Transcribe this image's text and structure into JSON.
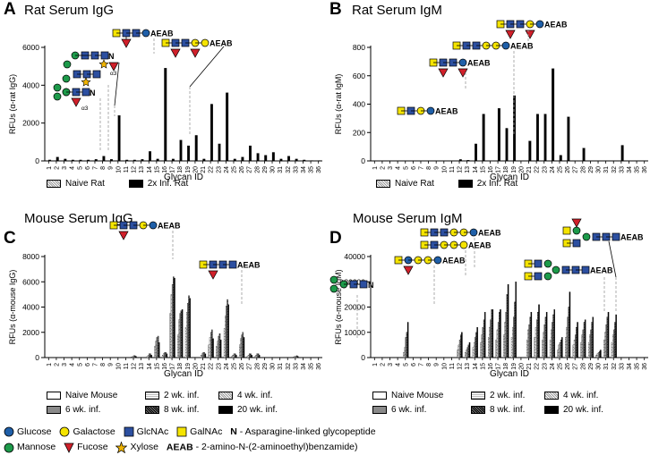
{
  "glycan_ids": [
    "1",
    "2",
    "3",
    "4",
    "5",
    "6",
    "7",
    "8",
    "9",
    "10",
    "11",
    "12",
    "13",
    "14",
    "15",
    "16",
    "17",
    "18",
    "19",
    "20",
    "21",
    "22",
    "23",
    "24",
    "25",
    "26",
    "27",
    "28",
    "29",
    "30",
    "31",
    "32",
    "33",
    "34",
    "35",
    "36"
  ],
  "xlabel": "Glycan ID",
  "panels": {
    "A": {
      "letter": "A",
      "title": "Rat Serum IgG",
      "ylabel": "RFUs (α-rat IgG)"
    },
    "B": {
      "letter": "B",
      "title": "Rat Serum IgM",
      "ylabel": "RFUs (α-rat IgM)"
    },
    "C": {
      "letter": "C",
      "title": "Mouse Serum IgG",
      "ylabel": "RFUs (α-mouse IgG)"
    },
    "D": {
      "letter": "D",
      "title": "Mouse Serum IgM",
      "ylabel": "RFUs (α-mouse IgM)"
    }
  },
  "rat_legend": [
    "Naive Rat",
    "2x Inf. Rat"
  ],
  "mouse_legend": [
    "Naive Mouse",
    "2 wk. inf.",
    "4 wk. inf.",
    "6 wk. inf.",
    "8 wk. inf.",
    "20 wk. inf."
  ],
  "annotations": {
    "aeab": "AEAB",
    "n": "N",
    "a3": "α3"
  },
  "key": {
    "glucose": "Glucose",
    "galactose": "Galactose",
    "glcnac": "GlcNAc",
    "galnac": "GalNAc",
    "n_label": "N",
    "n_desc": "- Asparagine-linked glycopeptide",
    "mannose": "Mannose",
    "fucose": "Fucose",
    "xylose": "Xylose",
    "aeab_label": "AEAB",
    "aeab_desc": "- 2-amino-N-(2-aminoethyl)benzamide)"
  },
  "colors": {
    "glucose": "#1f5fa8",
    "galactose": "#f5e400",
    "glcnac": "#2c4fa0",
    "galnac": "#f5e400",
    "mannose": "#1d9a4a",
    "fucose": "#d0202a",
    "xylose": "#f0b400"
  },
  "chart_data": [
    {
      "type": "bar",
      "title": "Rat Serum IgG",
      "xlabel": "Glycan ID",
      "ylabel": "RFUs (α-rat IgG)",
      "ylim": [
        0,
        6000
      ],
      "yticks": [
        0,
        2000,
        4000,
        6000
      ],
      "categories": [
        "1",
        "2",
        "3",
        "4",
        "5",
        "6",
        "7",
        "8",
        "9",
        "10",
        "11",
        "12",
        "13",
        "14",
        "15",
        "16",
        "17",
        "18",
        "19",
        "20",
        "21",
        "22",
        "23",
        "24",
        "25",
        "26",
        "27",
        "28",
        "29",
        "30",
        "31",
        "32",
        "33",
        "34",
        "35",
        "36"
      ],
      "series": [
        {
          "name": "Naive Rat",
          "values": [
            0,
            0,
            0,
            0,
            0,
            0,
            0,
            0,
            0,
            0,
            0,
            0,
            0,
            0,
            0,
            0,
            0,
            0,
            0,
            0,
            0,
            0,
            0,
            0,
            0,
            0,
            0,
            0,
            0,
            0,
            0,
            0,
            0,
            0,
            0,
            0
          ]
        },
        {
          "name": "2x Inf. Rat",
          "values": [
            50,
            200,
            100,
            50,
            50,
            50,
            80,
            250,
            80,
            2400,
            50,
            50,
            80,
            500,
            100,
            4900,
            100,
            1100,
            800,
            1350,
            100,
            3000,
            900,
            3600,
            100,
            200,
            800,
            400,
            300,
            450,
            100,
            250,
            100,
            50,
            20,
            20
          ]
        }
      ]
    },
    {
      "type": "bar",
      "title": "Rat Serum IgM",
      "xlabel": "Glycan ID",
      "ylabel": "RFUs (α-rat IgM)",
      "ylim": [
        0,
        800
      ],
      "yticks": [
        0,
        200,
        400,
        600,
        800
      ],
      "categories": [
        "1",
        "2",
        "3",
        "4",
        "5",
        "6",
        "7",
        "8",
        "9",
        "10",
        "11",
        "12",
        "13",
        "14",
        "15",
        "16",
        "17",
        "18",
        "19",
        "20",
        "21",
        "22",
        "23",
        "24",
        "25",
        "26",
        "27",
        "28",
        "29",
        "30",
        "31",
        "32",
        "33",
        "34",
        "35",
        "36"
      ],
      "series": [
        {
          "name": "Naive Rat",
          "values": [
            0,
            0,
            0,
            0,
            0,
            0,
            0,
            0,
            0,
            0,
            0,
            0,
            0,
            0,
            0,
            0,
            0,
            0,
            0,
            0,
            0,
            0,
            0,
            0,
            0,
            0,
            0,
            0,
            0,
            0,
            0,
            0,
            0,
            0,
            0,
            0
          ]
        },
        {
          "name": "2x Inf. Rat",
          "values": [
            0,
            0,
            0,
            0,
            0,
            0,
            0,
            0,
            0,
            0,
            0,
            10,
            5,
            120,
            330,
            0,
            370,
            230,
            460,
            0,
            140,
            330,
            330,
            650,
            40,
            310,
            0,
            90,
            0,
            0,
            0,
            0,
            110,
            0,
            0,
            0
          ]
        }
      ]
    },
    {
      "type": "bar",
      "title": "Mouse Serum IgG",
      "xlabel": "Glycan ID",
      "ylabel": "RFUs (α-mouse IgG)",
      "ylim": [
        0,
        8000
      ],
      "yticks": [
        0,
        2000,
        4000,
        6000,
        8000
      ],
      "categories": [
        "1",
        "2",
        "3",
        "4",
        "5",
        "6",
        "7",
        "8",
        "9",
        "10",
        "11",
        "12",
        "13",
        "14",
        "15",
        "16",
        "17",
        "18",
        "19",
        "20",
        "21",
        "22",
        "23",
        "24",
        "25",
        "26",
        "27",
        "28",
        "29",
        "30",
        "31",
        "32",
        "33",
        "34",
        "35",
        "36"
      ],
      "series": [
        {
          "name": "Naive Mouse",
          "values": [
            0,
            0,
            0,
            0,
            0,
            0,
            0,
            0,
            0,
            0,
            0,
            0,
            0,
            0,
            0,
            0,
            0,
            0,
            0,
            0,
            0,
            0,
            0,
            0,
            0,
            0,
            0,
            0,
            0,
            0,
            0,
            0,
            0,
            0,
            0,
            0
          ]
        },
        {
          "name": "2 wk. inf.",
          "values": [
            0,
            0,
            0,
            0,
            0,
            0,
            0,
            0,
            0,
            0,
            0,
            50,
            0,
            100,
            900,
            200,
            3500,
            1800,
            2400,
            0,
            200,
            1000,
            900,
            2300,
            100,
            1000,
            100,
            100,
            0,
            0,
            0,
            0,
            50,
            0,
            0,
            0
          ]
        },
        {
          "name": "4 wk. inf.",
          "values": [
            0,
            0,
            0,
            0,
            0,
            0,
            0,
            0,
            0,
            0,
            0,
            100,
            0,
            200,
            1300,
            300,
            5000,
            3000,
            3600,
            0,
            300,
            1600,
            1300,
            3300,
            200,
            1500,
            200,
            200,
            0,
            0,
            0,
            0,
            100,
            0,
            0,
            0
          ]
        },
        {
          "name": "6 wk. inf.",
          "values": [
            0,
            0,
            0,
            0,
            0,
            0,
            0,
            0,
            0,
            0,
            0,
            150,
            0,
            300,
            1600,
            400,
            5800,
            3500,
            4300,
            0,
            400,
            2000,
            1700,
            4100,
            300,
            1800,
            300,
            300,
            0,
            0,
            0,
            0,
            100,
            0,
            0,
            0
          ]
        },
        {
          "name": "8 wk. inf.",
          "values": [
            0,
            0,
            0,
            0,
            0,
            0,
            0,
            0,
            0,
            0,
            0,
            150,
            0,
            300,
            1700,
            400,
            6400,
            3700,
            4900,
            0,
            400,
            2200,
            1900,
            4600,
            300,
            2000,
            300,
            300,
            0,
            0,
            0,
            0,
            150,
            0,
            0,
            0
          ]
        },
        {
          "name": "20 wk. inf.",
          "values": [
            0,
            0,
            0,
            0,
            0,
            0,
            0,
            0,
            0,
            0,
            0,
            100,
            0,
            200,
            1200,
            300,
            6300,
            3800,
            4700,
            0,
            300,
            1500,
            1400,
            4200,
            200,
            1600,
            200,
            200,
            0,
            0,
            0,
            0,
            100,
            0,
            0,
            0
          ]
        }
      ]
    },
    {
      "type": "bar",
      "title": "Mouse Serum IgM",
      "xlabel": "Glycan ID",
      "ylabel": "RFUs (α-mouse IgM)",
      "ylim": [
        0,
        40000
      ],
      "yticks": [
        0,
        10000,
        20000,
        30000,
        40000
      ],
      "categories": [
        "1",
        "2",
        "3",
        "4",
        "5",
        "6",
        "7",
        "8",
        "9",
        "10",
        "11",
        "12",
        "13",
        "14",
        "15",
        "16",
        "17",
        "18",
        "19",
        "20",
        "21",
        "22",
        "23",
        "24",
        "25",
        "26",
        "27",
        "28",
        "29",
        "30",
        "31",
        "32",
        "33",
        "34",
        "35",
        "36"
      ],
      "series": [
        {
          "name": "Naive Mouse",
          "values": [
            0,
            0,
            0,
            0,
            0,
            0,
            0,
            0,
            0,
            0,
            0,
            0,
            0,
            0,
            0,
            0,
            0,
            0,
            0,
            0,
            0,
            0,
            0,
            0,
            0,
            0,
            0,
            0,
            0,
            0,
            0,
            0,
            0,
            0,
            0,
            0
          ]
        },
        {
          "name": "2 wk. inf.",
          "values": [
            0,
            0,
            0,
            0,
            2000,
            0,
            0,
            0,
            0,
            0,
            0,
            3000,
            2000,
            4000,
            6000,
            8000,
            7000,
            9000,
            8000,
            0,
            7000,
            8000,
            7000,
            7000,
            3000,
            8000,
            5000,
            6000,
            6000,
            1000,
            7000,
            6000,
            0,
            0,
            0,
            0
          ]
        },
        {
          "name": "4 wk. inf.",
          "values": [
            0,
            0,
            0,
            0,
            4000,
            0,
            0,
            0,
            0,
            0,
            0,
            5000,
            3000,
            6000,
            9000,
            12000,
            11000,
            14000,
            12000,
            0,
            11000,
            12000,
            10000,
            11000,
            5000,
            12000,
            7000,
            9000,
            9000,
            1500,
            10000,
            9000,
            0,
            0,
            0,
            0
          ]
        },
        {
          "name": "6 wk. inf.",
          "values": [
            0,
            0,
            0,
            0,
            8000,
            0,
            0,
            0,
            0,
            0,
            0,
            7000,
            4000,
            8000,
            12000,
            15000,
            14000,
            18000,
            16000,
            0,
            13000,
            15000,
            13000,
            14000,
            6000,
            16000,
            9000,
            11000,
            11000,
            2000,
            13000,
            11000,
            0,
            0,
            0,
            0
          ]
        },
        {
          "name": "8 wk. inf.",
          "values": [
            0,
            0,
            0,
            0,
            10000,
            0,
            0,
            0,
            0,
            0,
            0,
            9000,
            5000,
            10000,
            15000,
            19000,
            18000,
            25000,
            22000,
            0,
            16000,
            18000,
            16000,
            17000,
            7000,
            20000,
            12000,
            14000,
            14000,
            2500,
            16000,
            14000,
            0,
            0,
            0,
            0
          ]
        },
        {
          "name": "20 wk. inf.",
          "values": [
            0,
            0,
            0,
            0,
            14000,
            0,
            0,
            0,
            0,
            0,
            0,
            10000,
            6000,
            12000,
            18000,
            19000,
            19000,
            29000,
            30000,
            0,
            18000,
            21000,
            18000,
            19000,
            8000,
            26000,
            14000,
            15000,
            16000,
            3000,
            18000,
            17000,
            0,
            0,
            0,
            0
          ]
        }
      ]
    }
  ]
}
